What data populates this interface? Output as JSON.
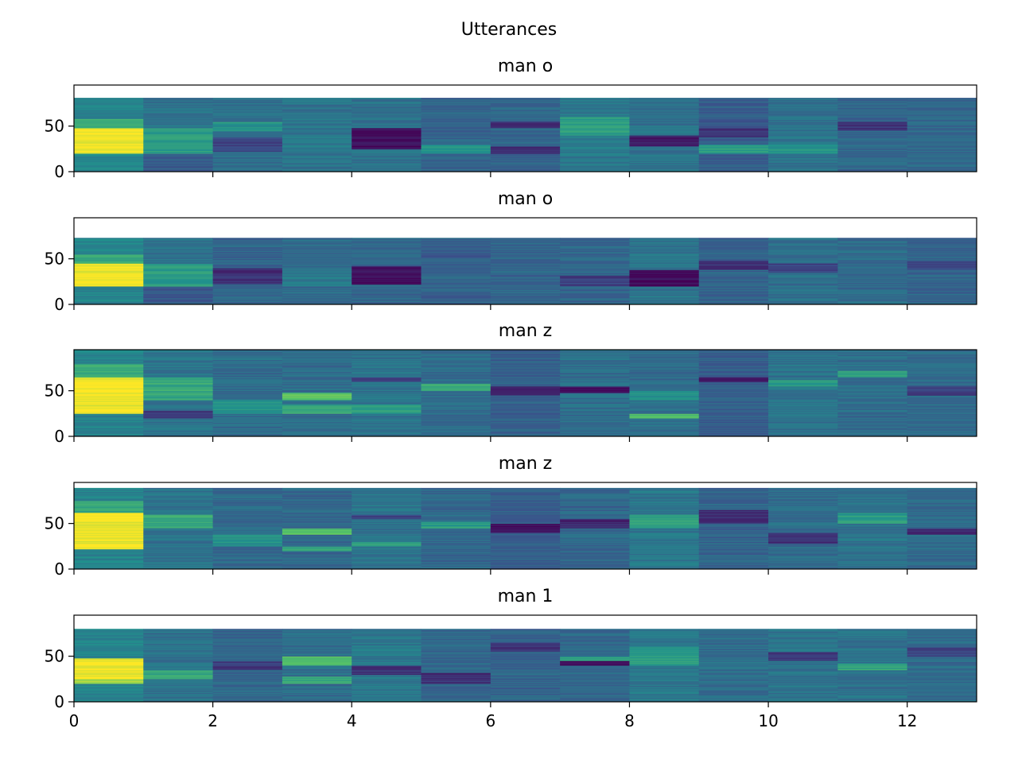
{
  "figure": {
    "suptitle": "Utterances"
  },
  "colormap": {
    "name": "viridis",
    "stops": [
      "#440154",
      "#3b528b",
      "#21918c",
      "#5ec962",
      "#fde725"
    ]
  },
  "chart_data": [
    {
      "type": "heatmap",
      "title": "man o",
      "xlim": [
        0,
        13
      ],
      "ylim": [
        0,
        95
      ],
      "data_height": 81,
      "xticks": [
        0,
        2,
        4,
        6,
        8,
        10,
        12
      ],
      "yticks": [
        0,
        50
      ],
      "x_tick_labels_shown": false,
      "columns": [
        {
          "base": 0.45,
          "bands": [
            [
              20,
              48,
              0.98
            ],
            [
              48,
              58,
              0.62
            ]
          ]
        },
        {
          "base": 0.38,
          "bands": [
            [
              0,
              20,
              0.28
            ],
            [
              20,
              48,
              0.55
            ]
          ]
        },
        {
          "base": 0.36,
          "bands": [
            [
              22,
              38,
              0.22
            ],
            [
              45,
              55,
              0.5
            ]
          ]
        },
        {
          "base": 0.38,
          "bands": [
            [
              20,
              40,
              0.42
            ]
          ]
        },
        {
          "base": 0.38,
          "bands": [
            [
              25,
              48,
              0.06
            ]
          ]
        },
        {
          "base": 0.32,
          "bands": [
            [
              20,
              30,
              0.5
            ]
          ]
        },
        {
          "base": 0.33,
          "bands": [
            [
              20,
              28,
              0.12
            ],
            [
              48,
              55,
              0.12
            ]
          ]
        },
        {
          "base": 0.4,
          "bands": [
            [
              40,
              60,
              0.55
            ]
          ]
        },
        {
          "base": 0.38,
          "bands": [
            [
              28,
              40,
              0.08
            ]
          ]
        },
        {
          "base": 0.3,
          "bands": [
            [
              20,
              30,
              0.55
            ],
            [
              38,
              48,
              0.15
            ]
          ]
        },
        {
          "base": 0.38,
          "bands": [
            [
              20,
              30,
              0.52
            ]
          ]
        },
        {
          "base": 0.33,
          "bands": [
            [
              45,
              55,
              0.15
            ]
          ]
        },
        {
          "base": 0.34,
          "bands": []
        }
      ]
    },
    {
      "type": "heatmap",
      "title": "man o",
      "xlim": [
        0,
        13
      ],
      "ylim": [
        0,
        95
      ],
      "data_height": 73,
      "xticks": [
        0,
        2,
        4,
        6,
        8,
        10,
        12
      ],
      "yticks": [
        0,
        50
      ],
      "x_tick_labels_shown": false,
      "columns": [
        {
          "base": 0.45,
          "bands": [
            [
              20,
              45,
              0.98
            ],
            [
              45,
              55,
              0.6
            ]
          ]
        },
        {
          "base": 0.38,
          "bands": [
            [
              0,
              20,
              0.28
            ],
            [
              20,
              45,
              0.55
            ]
          ]
        },
        {
          "base": 0.33,
          "bands": [
            [
              22,
              40,
              0.15
            ]
          ]
        },
        {
          "base": 0.35,
          "bands": [
            [
              20,
              35,
              0.4
            ]
          ]
        },
        {
          "base": 0.33,
          "bands": [
            [
              22,
              42,
              0.04
            ]
          ]
        },
        {
          "base": 0.3,
          "bands": [
            [
              10,
              30,
              0.32
            ]
          ]
        },
        {
          "base": 0.33,
          "bands": []
        },
        {
          "base": 0.33,
          "bands": [
            [
              20,
              32,
              0.18
            ]
          ]
        },
        {
          "base": 0.38,
          "bands": [
            [
              20,
              38,
              0.04
            ]
          ]
        },
        {
          "base": 0.32,
          "bands": [
            [
              38,
              48,
              0.15
            ]
          ]
        },
        {
          "base": 0.36,
          "bands": [
            [
              35,
              45,
              0.2
            ]
          ]
        },
        {
          "base": 0.35,
          "bands": []
        },
        {
          "base": 0.32,
          "bands": [
            [
              38,
              48,
              0.2
            ]
          ]
        }
      ]
    },
    {
      "type": "heatmap",
      "title": "man z",
      "xlim": [
        0,
        13
      ],
      "ylim": [
        0,
        95
      ],
      "data_height": 95,
      "xticks": [
        0,
        2,
        4,
        6,
        8,
        10,
        12
      ],
      "yticks": [
        0,
        50
      ],
      "x_tick_labels_shown": false,
      "columns": [
        {
          "base": 0.45,
          "bands": [
            [
              25,
              65,
              0.98
            ],
            [
              65,
              80,
              0.62
            ]
          ]
        },
        {
          "base": 0.38,
          "bands": [
            [
              40,
              65,
              0.6
            ],
            [
              20,
              28,
              0.15
            ]
          ]
        },
        {
          "base": 0.36,
          "bands": [
            [
              25,
              40,
              0.5
            ]
          ]
        },
        {
          "base": 0.35,
          "bands": [
            [
              40,
              48,
              0.75
            ],
            [
              25,
              35,
              0.6
            ]
          ]
        },
        {
          "base": 0.38,
          "bands": [
            [
              25,
              35,
              0.55
            ],
            [
              60,
              65,
              0.15
            ]
          ]
        },
        {
          "base": 0.35,
          "bands": [
            [
              50,
              58,
              0.6
            ]
          ]
        },
        {
          "base": 0.3,
          "bands": [
            [
              45,
              55,
              0.1
            ]
          ]
        },
        {
          "base": 0.36,
          "bands": [
            [
              48,
              55,
              0.05
            ]
          ]
        },
        {
          "base": 0.36,
          "bands": [
            [
              40,
              50,
              0.5
            ],
            [
              20,
              25,
              0.7
            ]
          ]
        },
        {
          "base": 0.3,
          "bands": [
            [
              60,
              65,
              0.05
            ]
          ]
        },
        {
          "base": 0.38,
          "bands": [
            [
              55,
              62,
              0.55
            ]
          ]
        },
        {
          "base": 0.36,
          "bands": [
            [
              65,
              72,
              0.55
            ]
          ]
        },
        {
          "base": 0.35,
          "bands": [
            [
              45,
              55,
              0.2
            ]
          ]
        }
      ]
    },
    {
      "type": "heatmap",
      "title": "man z",
      "xlim": [
        0,
        13
      ],
      "ylim": [
        0,
        95
      ],
      "data_height": 89,
      "xticks": [
        0,
        2,
        4,
        6,
        8,
        10,
        12
      ],
      "yticks": [
        0,
        50
      ],
      "x_tick_labels_shown": false,
      "columns": [
        {
          "base": 0.45,
          "bands": [
            [
              22,
              62,
              0.98
            ],
            [
              62,
              75,
              0.6
            ]
          ]
        },
        {
          "base": 0.38,
          "bands": [
            [
              45,
              60,
              0.6
            ]
          ]
        },
        {
          "base": 0.34,
          "bands": [
            [
              25,
              38,
              0.5
            ]
          ]
        },
        {
          "base": 0.33,
          "bands": [
            [
              38,
              45,
              0.72
            ],
            [
              20,
              25,
              0.6
            ]
          ]
        },
        {
          "base": 0.38,
          "bands": [
            [
              25,
              30,
              0.55
            ],
            [
              55,
              60,
              0.2
            ]
          ]
        },
        {
          "base": 0.34,
          "bands": [
            [
              45,
              52,
              0.55
            ]
          ]
        },
        {
          "base": 0.3,
          "bands": [
            [
              40,
              50,
              0.05
            ]
          ]
        },
        {
          "base": 0.34,
          "bands": [
            [
              45,
              55,
              0.12
            ]
          ]
        },
        {
          "base": 0.4,
          "bands": [
            [
              45,
              60,
              0.55
            ]
          ]
        },
        {
          "base": 0.32,
          "bands": [
            [
              50,
              65,
              0.15
            ]
          ]
        },
        {
          "base": 0.35,
          "bands": [
            [
              28,
              40,
              0.15
            ]
          ]
        },
        {
          "base": 0.38,
          "bands": [
            [
              50,
              62,
              0.55
            ]
          ]
        },
        {
          "base": 0.35,
          "bands": [
            [
              38,
              45,
              0.15
            ]
          ]
        }
      ]
    },
    {
      "type": "heatmap",
      "title": "man 1",
      "xlim": [
        0,
        13
      ],
      "ylim": [
        0,
        95
      ],
      "data_height": 80,
      "xticks": [
        0,
        2,
        4,
        6,
        8,
        10,
        12
      ],
      "xtick_labels": [
        "0",
        "2",
        "4",
        "6",
        "8",
        "10",
        "12"
      ],
      "yticks": [
        0,
        50
      ],
      "x_tick_labels_shown": true,
      "columns": [
        {
          "base": 0.45,
          "bands": [
            [
              25,
              48,
              0.98
            ],
            [
              20,
              25,
              0.85
            ]
          ]
        },
        {
          "base": 0.38,
          "bands": [
            [
              25,
              35,
              0.6
            ]
          ]
        },
        {
          "base": 0.33,
          "bands": [
            [
              35,
              45,
              0.18
            ]
          ]
        },
        {
          "base": 0.36,
          "bands": [
            [
              40,
              50,
              0.72
            ],
            [
              20,
              28,
              0.6
            ]
          ]
        },
        {
          "base": 0.4,
          "bands": [
            [
              30,
              40,
              0.15
            ]
          ]
        },
        {
          "base": 0.33,
          "bands": [
            [
              20,
              32,
              0.15
            ]
          ]
        },
        {
          "base": 0.32,
          "bands": [
            [
              55,
              65,
              0.15
            ]
          ]
        },
        {
          "base": 0.34,
          "bands": [
            [
              40,
              45,
              0.02
            ],
            [
              45,
              50,
              0.55
            ]
          ]
        },
        {
          "base": 0.4,
          "bands": [
            [
              40,
              60,
              0.55
            ]
          ]
        },
        {
          "base": 0.36,
          "bands": []
        },
        {
          "base": 0.38,
          "bands": [
            [
              45,
              55,
              0.18
            ]
          ]
        },
        {
          "base": 0.38,
          "bands": [
            [
              35,
              42,
              0.6
            ]
          ]
        },
        {
          "base": 0.35,
          "bands": [
            [
              50,
              60,
              0.2
            ]
          ]
        }
      ]
    }
  ]
}
